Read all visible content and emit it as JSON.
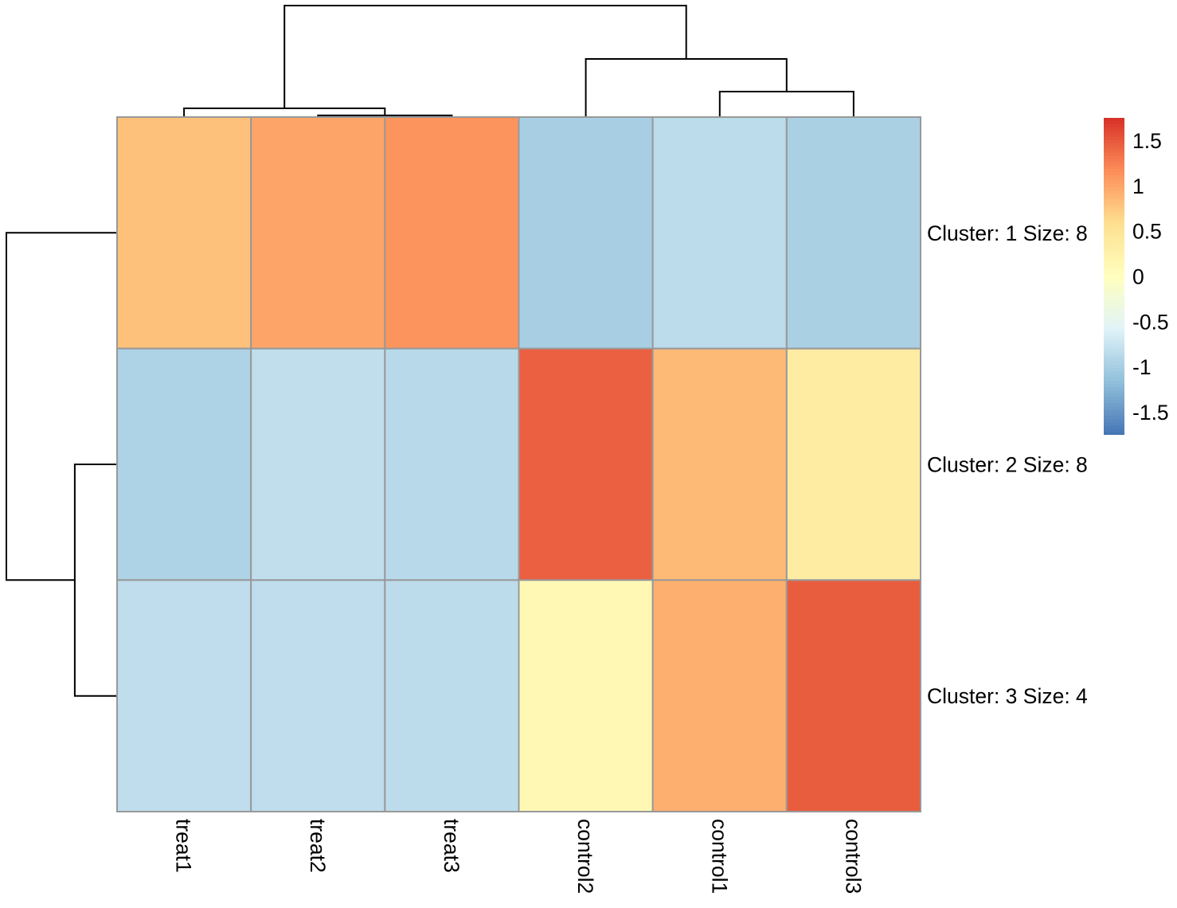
{
  "chart_data": {
    "type": "heatmap",
    "columns": [
      "treat1",
      "treat2",
      "treat3",
      "control2",
      "control1",
      "control3"
    ],
    "rows": [
      "Cluster: 1 Size: 8",
      "Cluster: 2 Size: 8",
      "Cluster: 3 Size: 4"
    ],
    "values": [
      [
        0.8,
        1.0,
        1.12,
        -1.0,
        -0.85,
        -0.98
      ],
      [
        -0.95,
        -0.82,
        -0.88,
        1.45,
        0.85,
        0.35
      ],
      [
        -0.83,
        -0.83,
        -0.84,
        0.13,
        0.93,
        1.47
      ]
    ],
    "color_scale": {
      "colors": [
        "#4575B4",
        "#91BFDB",
        "#E0F3F8",
        "#FFFFBF",
        "#FEE090",
        "#FC8D59",
        "#D73027"
      ],
      "range": [
        -1.75,
        1.75
      ]
    },
    "legend": {
      "ticks": [
        1.5,
        1,
        0.5,
        0,
        -0.5,
        -1,
        -1.5
      ],
      "tick_labels": [
        "1.5",
        "1",
        "0.5",
        "0",
        "-0.5",
        "-1",
        "-1.5"
      ]
    },
    "col_dendrogram": {
      "merge": [
        [
          -2,
          -3
        ],
        [
          -1,
          1
        ],
        [
          -5,
          -6
        ],
        [
          -4,
          3
        ],
        [
          2,
          4
        ]
      ],
      "height": [
        0.09,
        0.47,
        1.37,
        3.13,
        6.0
      ]
    },
    "row_dendrogram": {
      "merge": [
        [
          -2,
          -3
        ],
        [
          -1,
          1
        ]
      ],
      "height": [
        2.29,
        6.0
      ]
    },
    "cell_border_color": "#999999"
  }
}
